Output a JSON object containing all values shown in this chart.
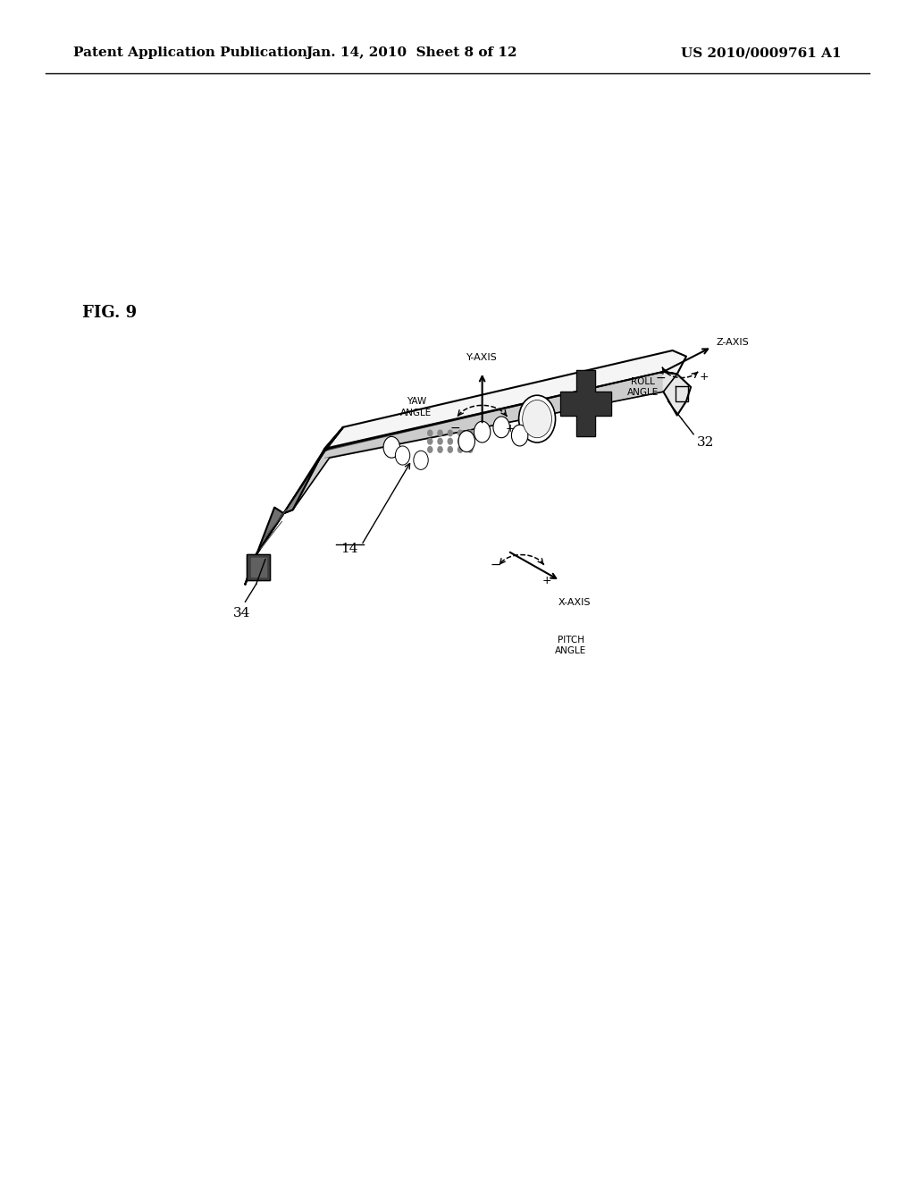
{
  "background_color": "#ffffff",
  "header_left": "Patent Application Publication",
  "header_center": "Jan. 14, 2010  Sheet 8 of 12",
  "header_right": "US 2010/0009761 A1",
  "fig_label": "FIG. 9",
  "font_size_header": 11,
  "font_size_fig": 13
}
